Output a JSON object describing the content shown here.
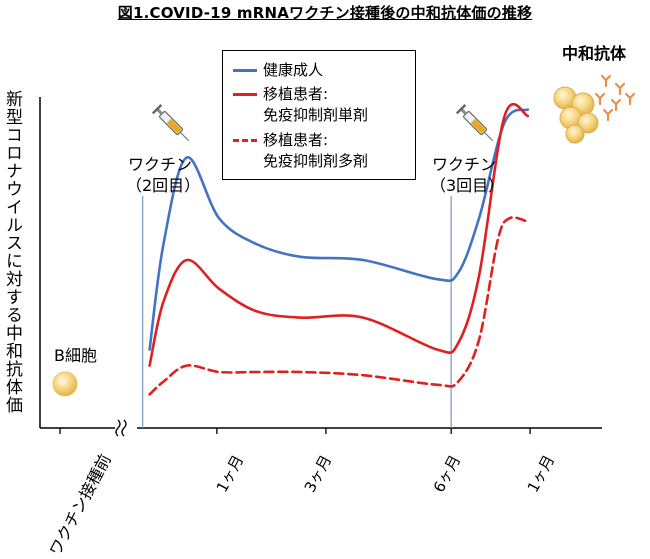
{
  "title": "図1.COVID-19 mRNAワクチン接種後の中和抗体価の推移",
  "ylabel": "新型コロナウイルスに対する中和抗体価",
  "legend": [
    {
      "label_line1": "健康成人",
      "label_line2": "",
      "color": "#4472c4",
      "dash": false
    },
    {
      "label_line1": "移植患者:",
      "label_line2": "免疫抑制剤単剤",
      "color": "#e02020",
      "dash": false
    },
    {
      "label_line1": "移植患者:",
      "label_line2": "免疫抑制剤多剤",
      "color": "#e02020",
      "dash": true
    }
  ],
  "annotations": {
    "vaccine2_line1": "ワクチン",
    "vaccine2_line2": "（2回目）",
    "vaccine3_line1": "ワクチン",
    "vaccine3_line2": "（3回目）",
    "bcell": "B細胞",
    "antibody": "中和抗体"
  },
  "x_labels": {
    "before": "ワクチン接種前",
    "t1": "1ヶ月",
    "t2": "3ヶ月",
    "t3": "6ヶ月",
    "t4": "1ヶ月"
  },
  "colors": {
    "healthy": "#4472c4",
    "transplant": "#e02020",
    "vline": "#7f9fc8",
    "bcell": "#f6d27a",
    "antibody": "#e8904a"
  },
  "chart_data": {
    "type": "line",
    "title": "図1.COVID-19 mRNAワクチン接種後の中和抗体価の推移",
    "ylabel": "新型コロナウイルスに対する中和抗体価",
    "xlabel": "",
    "x_tick_labels": [
      "ワクチン接種前",
      "1ヶ月",
      "3ヶ月",
      "6ヶ月",
      "1ヶ月"
    ],
    "series": [
      {
        "name": "健康成人",
        "points": [
          [
            0.3,
            0.22
          ],
          [
            0.36,
            0.55
          ],
          [
            0.46,
            0.82
          ],
          [
            0.6,
            0.63
          ],
          [
            0.76,
            0.55
          ],
          [
            0.95,
            0.51
          ],
          [
            1.22,
            0.5
          ],
          [
            1.54,
            0.44
          ],
          [
            1.63,
            0.46
          ],
          [
            1.72,
            0.63
          ],
          [
            1.83,
            0.93
          ],
          [
            1.93,
            0.97
          ]
        ]
      },
      {
        "name": "移植患者: 免疫抑制剤単剤",
        "points": [
          [
            0.3,
            0.17
          ],
          [
            0.36,
            0.37
          ],
          [
            0.46,
            0.5
          ],
          [
            0.6,
            0.41
          ],
          [
            0.76,
            0.34
          ],
          [
            0.95,
            0.32
          ],
          [
            1.22,
            0.32
          ],
          [
            1.54,
            0.22
          ],
          [
            1.63,
            0.24
          ],
          [
            1.72,
            0.45
          ],
          [
            1.83,
            0.95
          ],
          [
            1.93,
            0.95
          ]
        ]
      },
      {
        "name": "移植患者: 免疫抑制剤多剤",
        "points": [
          [
            0.3,
            0.08
          ],
          [
            0.36,
            0.12
          ],
          [
            0.46,
            0.17
          ],
          [
            0.6,
            0.15
          ],
          [
            0.76,
            0.15
          ],
          [
            0.95,
            0.15
          ],
          [
            1.22,
            0.14
          ],
          [
            1.54,
            0.11
          ],
          [
            1.63,
            0.12
          ],
          [
            1.72,
            0.25
          ],
          [
            1.8,
            0.56
          ],
          [
            1.85,
            0.63
          ],
          [
            1.93,
            0.62
          ]
        ]
      }
    ],
    "events": [
      {
        "label": "ワクチン（2回目）",
        "x": 0.3
      },
      {
        "label": "ワクチン（3回目）",
        "x": 1.63
      }
    ],
    "grid": false,
    "legend_position": "top-center"
  }
}
